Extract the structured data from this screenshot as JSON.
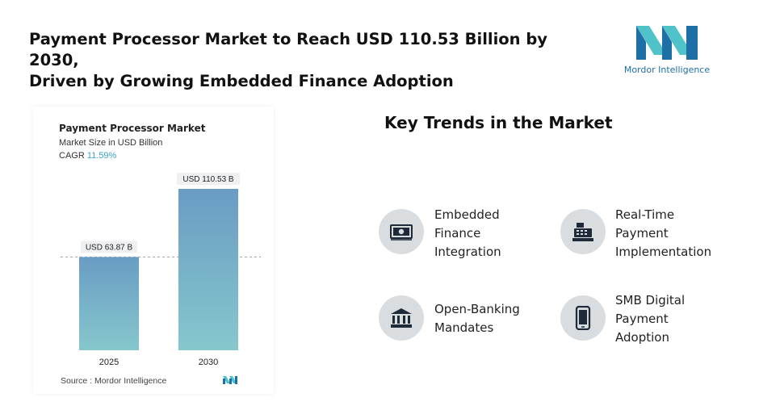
{
  "headline": "Payment Processor Market to Reach USD 110.53 Billion by 2030,\nDriven by Growing Embedded Finance Adoption",
  "brand": {
    "name": "Mordor Intelligence",
    "colors": {
      "teal": "#4fc3c9",
      "blue": "#1f6fa7"
    }
  },
  "chart": {
    "title": "Payment Processor Market",
    "subtitle": "Market Size in USD Billion",
    "cagr_label": "CAGR",
    "cagr_value": "11.59%",
    "source_label": "Source :",
    "source_value": "Mordor Intelligence"
  },
  "chart_data": {
    "type": "bar",
    "categories": [
      "2025",
      "2030"
    ],
    "values": [
      63.87,
      110.53
    ],
    "value_labels": [
      "USD 63.87 B",
      "USD 110.53 B"
    ],
    "title": "Payment Processor Market",
    "ylabel": "Market Size in USD Billion",
    "ylim": [
      0,
      110.53
    ],
    "reference_line": "2025 value",
    "colors": {
      "bar_top": "#6a9cc4",
      "bar_bottom": "#86c7cc"
    }
  },
  "trends": {
    "title": "Key Trends in the Market",
    "items": [
      {
        "label": "Embedded\nFinance\nIntegration",
        "icon": "cash-icon"
      },
      {
        "label": "Real-Time\nPayment\nImplementation",
        "icon": "cash-register-icon"
      },
      {
        "label": "Open-Banking\nMandates",
        "icon": "bank-icon"
      },
      {
        "label": "SMB Digital\nPayment\nAdoption",
        "icon": "smartphone-icon"
      }
    ]
  }
}
